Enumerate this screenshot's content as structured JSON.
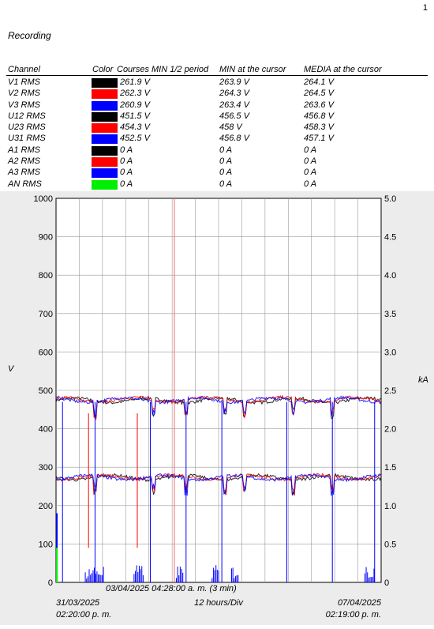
{
  "page_number": "1",
  "title": "Recording",
  "table": {
    "headers": [
      "Channel",
      "Color",
      "Courses MIN 1/2 period",
      "MIN at the cursor",
      "MEDIA at the cursor"
    ],
    "rows": [
      {
        "channel": "V1 RMS",
        "color": "#000000",
        "min_half": "261.9 V",
        "min_cursor": "263.9 V",
        "media_cursor": "264.1 V"
      },
      {
        "channel": "V2 RMS",
        "color": "#ff0000",
        "min_half": "262.3 V",
        "min_cursor": "264.3 V",
        "media_cursor": "264.5 V"
      },
      {
        "channel": "V3 RMS",
        "color": "#0000ff",
        "min_half": "260.9 V",
        "min_cursor": "263.4 V",
        "media_cursor": "263.6 V"
      },
      {
        "channel": "U12 RMS",
        "color": "#000000",
        "min_half": "451.5 V",
        "min_cursor": "456.5 V",
        "media_cursor": "456.8 V"
      },
      {
        "channel": "U23 RMS",
        "color": "#ff0000",
        "min_half": "454.3 V",
        "min_cursor": "458 V",
        "media_cursor": "458.3 V"
      },
      {
        "channel": "U31 RMS",
        "color": "#0000ff",
        "min_half": "452.5 V",
        "min_cursor": "456.8 V",
        "media_cursor": "457.1 V"
      },
      {
        "channel": "A1 RMS",
        "color": "#000000",
        "min_half": "0 A",
        "min_cursor": "0 A",
        "media_cursor": "0 A"
      },
      {
        "channel": "A2 RMS",
        "color": "#ff0000",
        "min_half": "0 A",
        "min_cursor": "0 A",
        "media_cursor": "0 A"
      },
      {
        "channel": "A3 RMS",
        "color": "#0000ff",
        "min_half": "0 A",
        "min_cursor": "0 A",
        "media_cursor": "0 A"
      },
      {
        "channel": "AN RMS",
        "color": "#00ee00",
        "min_half": "0 A",
        "min_cursor": "0 A",
        "media_cursor": "0 A"
      }
    ]
  },
  "chart_data": {
    "type": "line",
    "ylabel_left": "V",
    "ylabel_right": "kA",
    "ylim_left": [
      0,
      1000
    ],
    "ylim_right": [
      0,
      5.0
    ],
    "yticks_left": [
      "0",
      "100",
      "200",
      "300",
      "400",
      "500",
      "600",
      "700",
      "800",
      "900",
      "1000"
    ],
    "yticks_right": [
      "0",
      "0.5",
      "1.0",
      "1.5",
      "2.0",
      "2.5",
      "3.0",
      "3.5",
      "4.0",
      "4.5",
      "5.0"
    ],
    "x_start": "31/03/2025 02:20:00 p. m.",
    "x_start_date": "31/03/2025",
    "x_start_time": "02:20:00 p. m.",
    "x_end": "07/04/2025 02:19:00 p. m.",
    "x_end_date": "07/04/2025",
    "x_end_time": "02:19:00 p. m.",
    "x_division": "12 hours/Div",
    "x_divisions": 14,
    "grid": true,
    "cursor": {
      "label": "03/04/2025 04:28:00 a. m. (3 min)",
      "time": "03/04/2025 04:28:00 a. m."
    },
    "series": [
      {
        "name": "U12 RMS",
        "color": "#000000",
        "axis": "left",
        "level": 474
      },
      {
        "name": "U23 RMS",
        "color": "#ff0000",
        "axis": "left",
        "level": 476
      },
      {
        "name": "U31 RMS",
        "color": "#0000ff",
        "axis": "left",
        "level": 475
      },
      {
        "name": "V1 RMS",
        "color": "#000000",
        "axis": "left",
        "level": 273
      },
      {
        "name": "V2 RMS",
        "color": "#ff0000",
        "axis": "left",
        "level": 274
      },
      {
        "name": "V3 RMS",
        "color": "#0000ff",
        "axis": "left",
        "level": 273
      },
      {
        "name": "A3 RMS",
        "color": "#0000ff",
        "axis": "right",
        "level": 0
      },
      {
        "name": "AN RMS",
        "color": "#00ee00",
        "axis": "right",
        "level": 0
      }
    ]
  }
}
